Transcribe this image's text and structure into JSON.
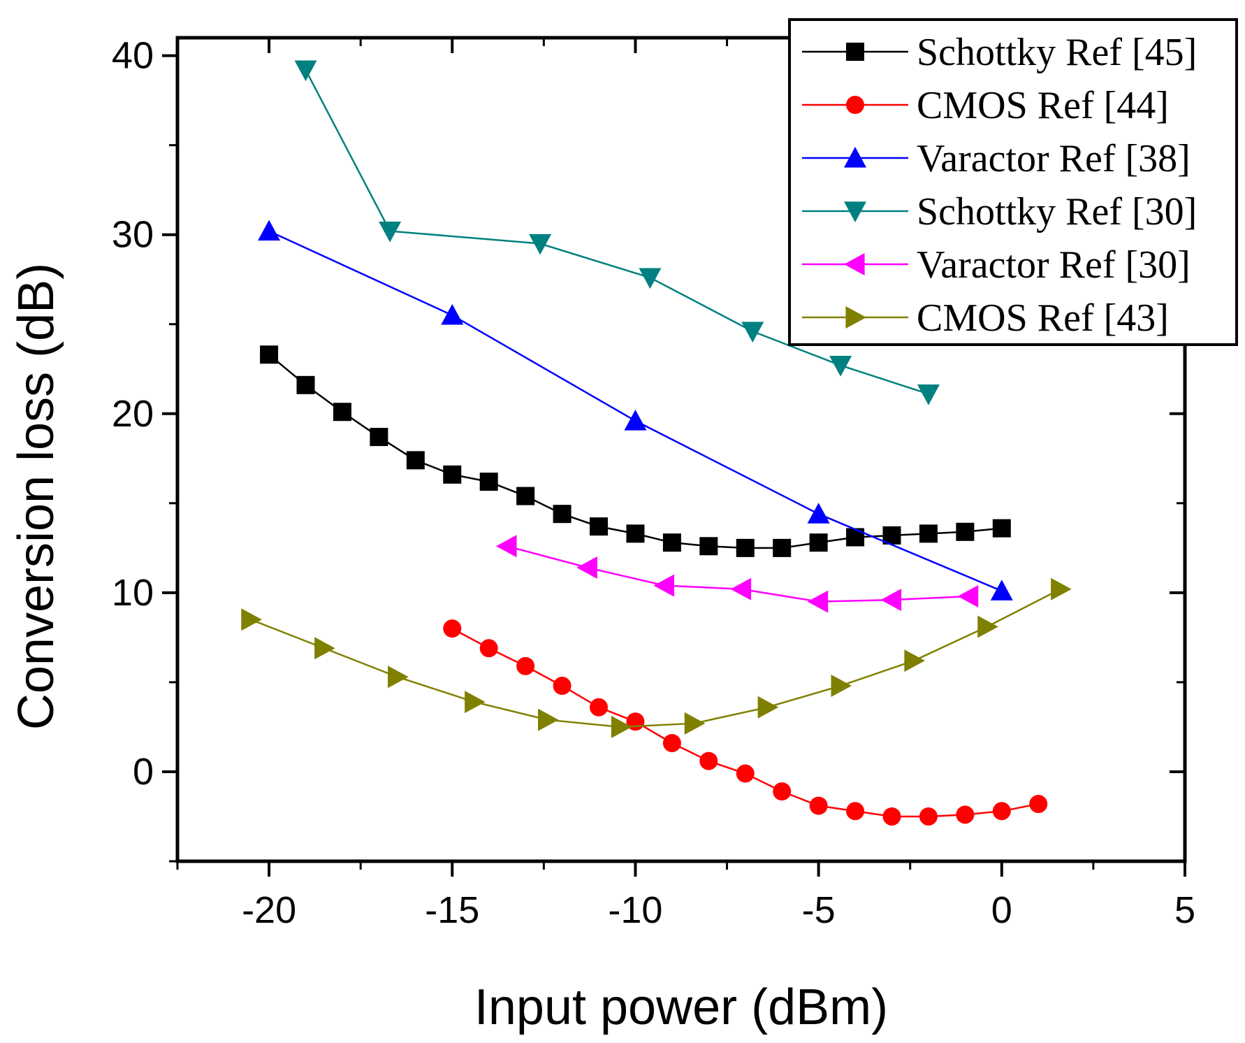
{
  "chart_data": {
    "type": "line",
    "title": "",
    "xlabel": "Input power (dBm)",
    "ylabel": "Conversion loss (dB)",
    "xlim": [
      -22.5,
      5
    ],
    "ylim": [
      -5,
      41
    ],
    "xticks": [
      -20,
      -15,
      -10,
      -5,
      0,
      5
    ],
    "yticks": [
      0,
      10,
      20,
      30,
      40
    ],
    "xtick_labels": [
      "-20",
      "-15",
      "-10",
      "-5",
      "0",
      "5"
    ],
    "ytick_labels": [
      "0",
      "10",
      "20",
      "30",
      "40"
    ],
    "legend_position": "top-right",
    "series": [
      {
        "name": "Schottky Ref [45]",
        "color": "#000000",
        "marker": "square",
        "x": [
          -20,
          -19,
          -18,
          -17,
          -16,
          -15,
          -14,
          -13,
          -12,
          -11,
          -10,
          -9,
          -8,
          -7,
          -6,
          -5,
          -4,
          -3,
          -2,
          -1,
          0
        ],
        "y": [
          23.3,
          21.6,
          20.1,
          18.7,
          17.4,
          16.6,
          16.2,
          15.4,
          14.4,
          13.7,
          13.3,
          12.8,
          12.6,
          12.5,
          12.5,
          12.8,
          13.1,
          13.2,
          13.3,
          13.4,
          13.6
        ]
      },
      {
        "name": "CMOS Ref [44]",
        "color": "#ff0000",
        "marker": "circle",
        "x": [
          -15,
          -14,
          -13,
          -12,
          -11,
          -10,
          -9,
          -8,
          -7,
          -6,
          -5,
          -4,
          -3,
          -2,
          -1,
          0,
          1
        ],
        "y": [
          8.0,
          6.9,
          5.9,
          4.8,
          3.6,
          2.8,
          1.6,
          0.6,
          -0.1,
          -1.1,
          -1.9,
          -2.2,
          -2.5,
          -2.5,
          -2.4,
          -2.2,
          -1.8
        ]
      },
      {
        "name": "Varactor Ref [38]",
        "color": "#0000ff",
        "marker": "triangle-up",
        "x": [
          -20,
          -15,
          -10,
          -5,
          0
        ],
        "y": [
          30.2,
          25.5,
          19.6,
          14.4,
          10.1
        ]
      },
      {
        "name": "Schottky Ref [30]",
        "color": "#008080",
        "marker": "triangle-down",
        "x": [
          -19,
          -16.7,
          -12.6,
          -9.6,
          -6.8,
          -4.4,
          -2
        ],
        "y": [
          39.2,
          30.2,
          29.5,
          27.6,
          24.6,
          22.7,
          21.1
        ]
      },
      {
        "name": "Varactor Ref [30]",
        "color": "#ff00ff",
        "marker": "triangle-left",
        "x": [
          -13.5,
          -11.3,
          -9.2,
          -7.1,
          -5,
          -3,
          -0.9
        ],
        "y": [
          12.6,
          11.4,
          10.4,
          10.2,
          9.5,
          9.6,
          9.8
        ]
      },
      {
        "name": "CMOS Ref [43]",
        "color": "#808000",
        "marker": "triangle-right",
        "x": [
          -20.5,
          -18.5,
          -16.5,
          -14.4,
          -12.4,
          -10.4,
          -8.4,
          -6.4,
          -4.4,
          -2.4,
          -0.4,
          1.6
        ],
        "y": [
          8.5,
          6.9,
          5.3,
          3.9,
          2.9,
          2.5,
          2.7,
          3.6,
          4.8,
          6.2,
          8.1,
          10.2
        ]
      }
    ]
  }
}
